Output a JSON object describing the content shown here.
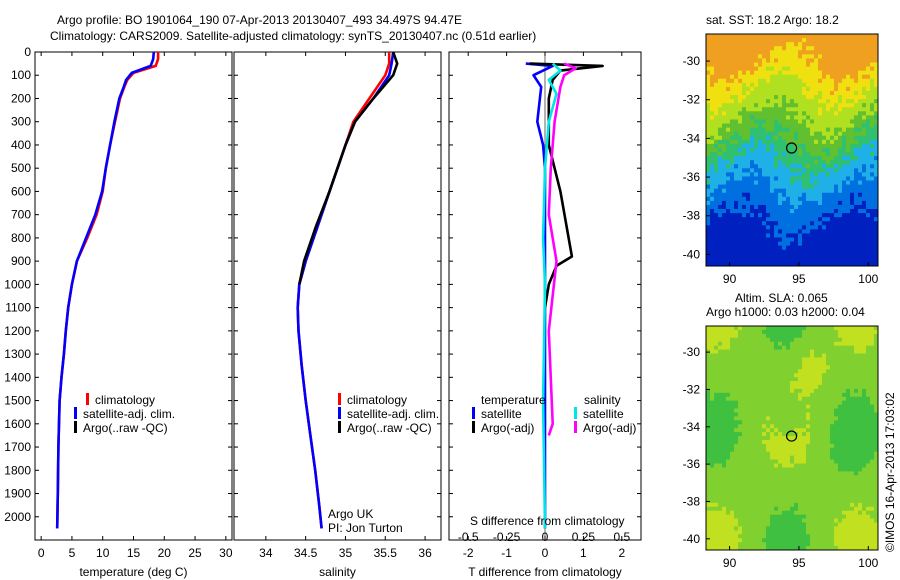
{
  "header": {
    "line1": "Argo profile: BO 1901064_190 07-Apr-2013 20130407_493 34.497S 94.47E",
    "line2": "Climatology: CARS2009. Satellite-adjusted climatology: synTS_20130407.nc (0.51d earlier)"
  },
  "footer": {
    "credit": "©IMOS 16-Apr-2013 17:03:02"
  },
  "colors": {
    "red": "#ff0000",
    "blue": "#0000ff",
    "black": "#000000",
    "cyan": "#00e5e5",
    "magenta": "#ff00ff"
  },
  "chart_data": [
    {
      "type": "line",
      "xlabel": "temperature (deg C)",
      "xlim": [
        -1,
        31
      ],
      "ylim": [
        2100,
        0
      ],
      "xticks": [
        0,
        5,
        10,
        15,
        20,
        25,
        30
      ],
      "yticks": [
        0,
        100,
        200,
        300,
        400,
        500,
        600,
        700,
        800,
        900,
        1000,
        1100,
        1200,
        1300,
        1400,
        1500,
        1600,
        1700,
        1800,
        1900,
        2000
      ],
      "legend": {
        "placement": "lower-middle",
        "items": [
          "climatology",
          "satellite-adj. clim.",
          "Argo(..raw -QC)"
        ]
      },
      "series": [
        {
          "name": "climatology",
          "color": "#ff0000",
          "x": [
            19,
            19,
            18.6,
            15,
            14,
            13.5,
            12.8,
            12,
            11.2,
            10.5,
            10,
            9,
            7.5,
            5.8,
            5,
            4.4,
            4,
            3.7,
            3.3,
            3,
            2.8,
            2.7,
            2.6
          ],
          "y": [
            0,
            30,
            60,
            90,
            120,
            150,
            200,
            300,
            400,
            500,
            600,
            700,
            800,
            900,
            1000,
            1100,
            1200,
            1300,
            1400,
            1500,
            1700,
            1900,
            2050
          ]
        },
        {
          "name": "satellite-adj. clim.",
          "color": "#0000ff",
          "x": [
            18.3,
            18.2,
            17.8,
            14.7,
            13.8,
            13.4,
            12.7,
            11.9,
            11.2,
            10.5,
            9.9,
            8.8,
            7.3,
            5.8,
            5,
            4.4,
            4,
            3.7,
            3.3,
            3,
            2.8,
            2.7,
            2.6
          ],
          "y": [
            0,
            30,
            60,
            90,
            120,
            150,
            200,
            300,
            400,
            500,
            600,
            700,
            800,
            900,
            1000,
            1100,
            1200,
            1300,
            1400,
            1500,
            1700,
            1900,
            2050
          ]
        }
      ]
    },
    {
      "type": "line",
      "xlabel": "salinity",
      "xlim": [
        33.6,
        36.2
      ],
      "ylim": [
        2100,
        0
      ],
      "xticks": [
        34,
        34.5,
        35,
        35.5,
        36
      ],
      "legend": {
        "placement": "lower-middle",
        "items": [
          "climatology",
          "satellite-adj. clim.",
          "Argo(..raw -QC)"
        ]
      },
      "annotation": [
        "Argo UK",
        "PI: Jon Turton"
      ],
      "series": [
        {
          "name": "climatology",
          "color": "#ff0000",
          "x": [
            35.55,
            35.55,
            35.5,
            35.3,
            35.1,
            35,
            34.9,
            34.8,
            34.65,
            34.5,
            34.42,
            34.4,
            34.41,
            34.45,
            34.5,
            34.56,
            34.62,
            34.67,
            34.7
          ],
          "y": [
            0,
            50,
            100,
            200,
            300,
            400,
            500,
            600,
            750,
            900,
            1000,
            1100,
            1200,
            1350,
            1500,
            1650,
            1800,
            1950,
            2050
          ]
        },
        {
          "name": "satellite-adj. clim.",
          "color": "#0000ff",
          "x": [
            35.6,
            35.58,
            35.55,
            35.35,
            35.12,
            35,
            34.9,
            34.8,
            34.65,
            34.5,
            34.42,
            34.4,
            34.41,
            34.45,
            34.5,
            34.56,
            34.62,
            34.67,
            34.7
          ],
          "y": [
            0,
            50,
            100,
            200,
            300,
            400,
            500,
            600,
            750,
            900,
            1000,
            1100,
            1200,
            1350,
            1500,
            1650,
            1800,
            1950,
            2050
          ]
        },
        {
          "name": "Argo(..raw -QC)",
          "color": "#000000",
          "x": [
            35.6,
            35.65,
            35.6,
            35.35,
            35.12,
            35,
            34.9,
            34.8,
            34.63,
            34.48,
            34.42
          ],
          "y": [
            0,
            50,
            100,
            200,
            300,
            400,
            500,
            600,
            750,
            900,
            1000
          ]
        }
      ]
    },
    {
      "type": "line",
      "xlabel": "T difference from climatology",
      "xlabel2": "S difference from climatology",
      "xlim": [
        -2.5,
        2.5
      ],
      "ylim": [
        2100,
        0
      ],
      "xticks": [
        -2,
        -1,
        0,
        1,
        2
      ],
      "xticks2": [
        "-0.5",
        "-0.25",
        "0",
        "0.25",
        "0.5"
      ],
      "legend": {
        "placement": "lower-middle",
        "temperature_title": "temperature",
        "salinity_title": "salinity",
        "items": [
          "satellite",
          "Argo(-adj)",
          "satellite",
          "Argo(-adj)"
        ]
      },
      "series": [
        {
          "name": "satellite",
          "group": "temperature",
          "color": "#0000ff",
          "x": [
            -0.5,
            0.2,
            -0.3,
            -0.1,
            -0.2,
            -0.05,
            0,
            0,
            0,
            0
          ],
          "y": [
            50,
            60,
            100,
            150,
            300,
            400,
            500,
            800,
            1200,
            2050
          ]
        },
        {
          "name": "Argo(-adj)",
          "group": "temperature",
          "color": "#000000",
          "x": [
            -0.4,
            1.5,
            0.4,
            0.2,
            0.1,
            0.1,
            0.4,
            0.7,
            0.3,
            0.1,
            0
          ],
          "y": [
            50,
            60,
            80,
            120,
            200,
            400,
            600,
            880,
            920,
            1000,
            1100
          ]
        },
        {
          "name": "satellite",
          "group": "salinity",
          "color": "#00e5e5",
          "x": [
            0.2,
            0.4,
            0.1,
            0.3,
            0.1,
            0,
            -0.05,
            0,
            -0.05,
            0
          ],
          "y": [
            50,
            80,
            120,
            180,
            300,
            500,
            800,
            1000,
            1500,
            2050
          ]
        },
        {
          "name": "Argo(-adj)",
          "group": "salinity",
          "color": "#ff00ff",
          "x": [
            0.5,
            0.8,
            0.5,
            0.4,
            0.25,
            0.15,
            0.1,
            0.3,
            0.1,
            0.2,
            0.1
          ],
          "y": [
            50,
            70,
            100,
            150,
            300,
            500,
            700,
            900,
            1200,
            1600,
            1650
          ]
        }
      ]
    },
    {
      "type": "heatmap",
      "title": "sat. SST: 18.2 Argo: 18.2",
      "xlim": [
        88.3,
        100.7
      ],
      "ylim": [
        -40.6,
        -28.6
      ],
      "xticks": [
        90,
        95,
        100
      ],
      "yticks": [
        -30,
        -32,
        -34,
        -36,
        -38,
        -40
      ],
      "marker": {
        "lon": 94.47,
        "lat": -34.497
      }
    },
    {
      "type": "heatmap",
      "title": "Altim. SLA: 0.065",
      "subtitle": "Argo h1000: 0.03 h2000: 0.04",
      "xlim": [
        88.3,
        100.7
      ],
      "ylim": [
        -40.6,
        -28.6
      ],
      "xticks": [
        90,
        95,
        100
      ],
      "yticks": [
        -30,
        -32,
        -34,
        -36,
        -38,
        -40
      ],
      "marker": {
        "lon": 94.47,
        "lat": -34.497
      }
    }
  ]
}
